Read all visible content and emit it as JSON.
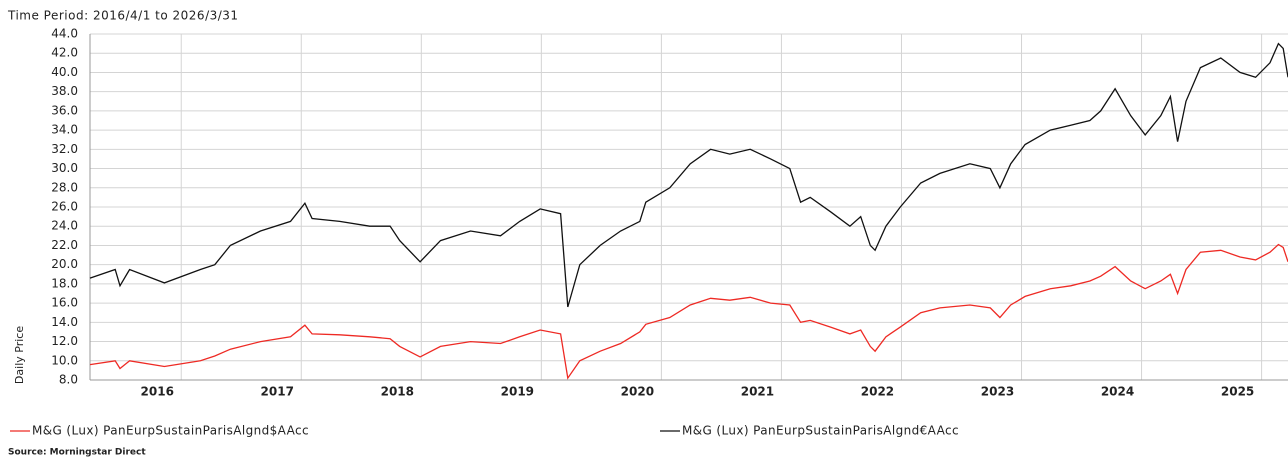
{
  "chart_data": {
    "type": "line",
    "title": "Time Period: 2016/4/1 to 2026/3/31",
    "y_label": "Daily Price",
    "source": "Source: Morningstar Direct",
    "x": [
      2016.24,
      2016.45,
      2016.49,
      2016.57,
      2016.86,
      2017.16,
      2017.28,
      2017.41,
      2017.66,
      2017.91,
      2018.03,
      2018.09,
      2018.32,
      2018.57,
      2018.74,
      2018.82,
      2018.99,
      2019.16,
      2019.41,
      2019.66,
      2019.82,
      2019.99,
      2020.16,
      2020.22,
      2020.32,
      2020.49,
      2020.66,
      2020.82,
      2020.87,
      2021.07,
      2021.24,
      2021.41,
      2021.57,
      2021.74,
      2021.91,
      2022.07,
      2022.16,
      2022.24,
      2022.41,
      2022.57,
      2022.66,
      2022.74,
      2022.78,
      2022.87,
      2022.99,
      2023.16,
      2023.32,
      2023.57,
      2023.74,
      2023.82,
      2023.91,
      2024.03,
      2024.24,
      2024.41,
      2024.57,
      2024.66,
      2024.78,
      2024.91,
      2025.03,
      2025.16,
      2025.24,
      2025.3,
      2025.37,
      2025.49,
      2025.66,
      2025.82,
      2025.95,
      2026.07,
      2026.14,
      2026.18,
      2026.22
    ],
    "series": [
      {
        "name": "M&G (Lux) PanEurpSustainParisAlgnd$AAcc",
        "color": "#ee2a24",
        "values": [
          9.6,
          10.0,
          9.2,
          10.0,
          9.4,
          10.0,
          10.5,
          11.2,
          12.0,
          12.5,
          13.7,
          12.8,
          12.7,
          12.5,
          12.3,
          11.5,
          10.4,
          11.5,
          12.0,
          11.8,
          12.5,
          13.2,
          12.8,
          8.2,
          10.0,
          11.0,
          11.8,
          13.0,
          13.8,
          14.5,
          15.8,
          16.5,
          16.3,
          16.6,
          16.0,
          15.8,
          14.0,
          14.2,
          13.5,
          12.8,
          13.2,
          11.5,
          11.0,
          12.5,
          13.5,
          15.0,
          15.5,
          15.8,
          15.5,
          14.5,
          15.8,
          16.7,
          17.5,
          17.8,
          18.3,
          18.8,
          19.8,
          18.3,
          17.5,
          18.3,
          19.0,
          17.0,
          19.5,
          21.3,
          21.5,
          20.8,
          20.5,
          21.3,
          22.1,
          21.8,
          20.3
        ]
      },
      {
        "name": "M&G (Lux) PanEurpSustainParisAlgnd€AAcc",
        "color": "#111111",
        "values": [
          18.6,
          19.5,
          17.8,
          19.5,
          18.1,
          19.5,
          20.0,
          22.0,
          23.5,
          24.5,
          26.4,
          24.8,
          24.5,
          24.0,
          24.0,
          22.5,
          20.3,
          22.5,
          23.5,
          23.0,
          24.5,
          25.8,
          25.3,
          15.6,
          20.0,
          22.0,
          23.5,
          24.5,
          26.5,
          28.0,
          30.5,
          32.0,
          31.5,
          32.0,
          31.0,
          30.0,
          26.5,
          27.0,
          25.5,
          24.0,
          25.0,
          22.0,
          21.5,
          24.0,
          26.0,
          28.5,
          29.5,
          30.5,
          30.0,
          28.0,
          30.5,
          32.5,
          34.0,
          34.5,
          35.0,
          36.0,
          38.3,
          35.5,
          33.5,
          35.5,
          37.5,
          32.8,
          37.0,
          40.5,
          41.5,
          40.0,
          39.5,
          41.0,
          43.0,
          42.5,
          39.5
        ]
      }
    ],
    "xlim": [
      2016.24,
      2026.22
    ],
    "xticks": [
      2016,
      2017,
      2018,
      2019,
      2020,
      2021,
      2022,
      2023,
      2024,
      2025
    ],
    "ylim": [
      8,
      44
    ],
    "yticks": [
      {
        "value": 8,
        "label": "8.0"
      },
      {
        "value": 10,
        "label": "10.0"
      },
      {
        "value": 12,
        "label": "12.0"
      },
      {
        "value": 14,
        "label": "14.0"
      },
      {
        "value": 16,
        "label": "16.0"
      },
      {
        "value": 18,
        "label": "18.0"
      },
      {
        "value": 20,
        "label": "20.0"
      },
      {
        "value": 22,
        "label": "22.0"
      },
      {
        "value": 24,
        "label": "24.0"
      },
      {
        "value": 26,
        "label": "26.0"
      },
      {
        "value": 28,
        "label": "28.0"
      },
      {
        "value": 30,
        "label": "30.0"
      },
      {
        "value": 32,
        "label": "32.0"
      },
      {
        "value": 34,
        "label": "34.0"
      },
      {
        "value": 36,
        "label": "36.0"
      },
      {
        "value": 38,
        "label": "38.0"
      },
      {
        "value": 40,
        "label": "40.0"
      },
      {
        "value": 42,
        "label": "42.0"
      },
      {
        "value": 44,
        "label": "44.0"
      }
    ],
    "grid": true,
    "legend": "bottom"
  }
}
